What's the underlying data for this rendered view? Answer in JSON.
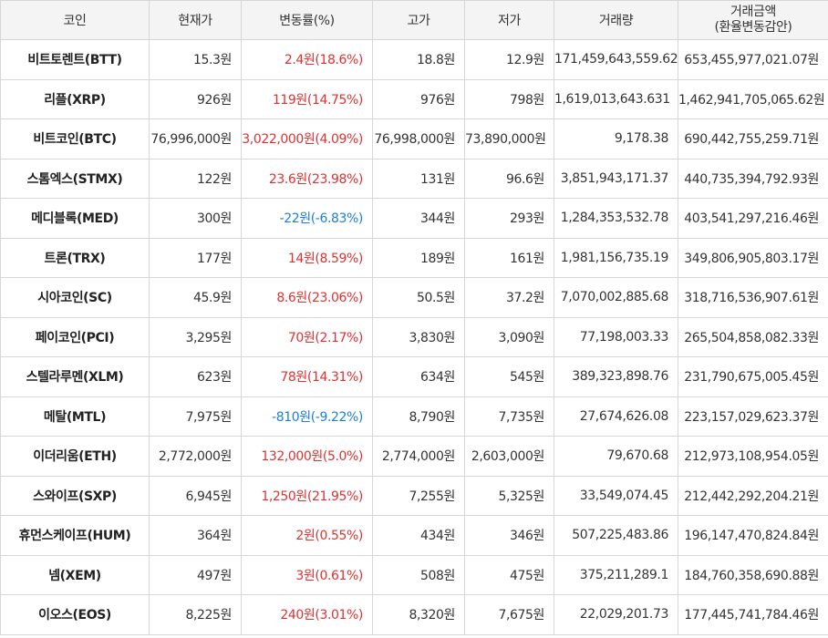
{
  "headers": {
    "coin": "코인",
    "price": "현재가",
    "change": "변동률(%)",
    "high": "고가",
    "low": "저가",
    "volume": "거래량",
    "amount_line1": "거래금액",
    "amount_line2": "(환율변동감안)"
  },
  "colors": {
    "up": "#e03131",
    "down": "#1c7ed6",
    "header_bg": "#f4f4f4",
    "border": "#d6d6d6"
  },
  "rows": [
    {
      "name": "비트토렌트(BTT)",
      "price": "15.3원",
      "change": "2.4원(18.6%)",
      "dir": "up",
      "high": "18.8원",
      "low": "12.9원",
      "volume": "171,459,643,559.62",
      "amount": "653,455,977,021.07원"
    },
    {
      "name": "리플(XRP)",
      "price": "926원",
      "change": "119원(14.75%)",
      "dir": "up",
      "high": "976원",
      "low": "798원",
      "volume": "1,619,013,643.631",
      "amount": "1,462,941,705,065.62원"
    },
    {
      "name": "비트코인(BTC)",
      "price": "76,996,000원",
      "change": "3,022,000원(4.09%)",
      "dir": "up",
      "high": "76,998,000원",
      "low": "73,890,000원",
      "volume": "9,178.38",
      "amount": "690,442,755,259.71원"
    },
    {
      "name": "스톰엑스(STMX)",
      "price": "122원",
      "change": "23.6원(23.98%)",
      "dir": "up",
      "high": "131원",
      "low": "96.6원",
      "volume": "3,851,943,171.37",
      "amount": "440,735,394,792.93원"
    },
    {
      "name": "메디블록(MED)",
      "price": "300원",
      "change": "-22원(-6.83%)",
      "dir": "down",
      "high": "344원",
      "low": "293원",
      "volume": "1,284,353,532.78",
      "amount": "403,541,297,216.46원"
    },
    {
      "name": "트론(TRX)",
      "price": "177원",
      "change": "14원(8.59%)",
      "dir": "up",
      "high": "189원",
      "low": "161원",
      "volume": "1,981,156,735.19",
      "amount": "349,806,905,803.17원"
    },
    {
      "name": "시아코인(SC)",
      "price": "45.9원",
      "change": "8.6원(23.06%)",
      "dir": "up",
      "high": "50.5원",
      "low": "37.2원",
      "volume": "7,070,002,885.68",
      "amount": "318,716,536,907.61원"
    },
    {
      "name": "페이코인(PCI)",
      "price": "3,295원",
      "change": "70원(2.17%)",
      "dir": "up",
      "high": "3,830원",
      "low": "3,090원",
      "volume": "77,198,003.33",
      "amount": "265,504,858,082.33원"
    },
    {
      "name": "스텔라루멘(XLM)",
      "price": "623원",
      "change": "78원(14.31%)",
      "dir": "up",
      "high": "634원",
      "low": "545원",
      "volume": "389,323,898.76",
      "amount": "231,790,675,005.45원"
    },
    {
      "name": "메탈(MTL)",
      "price": "7,975원",
      "change": "-810원(-9.22%)",
      "dir": "down",
      "high": "8,790원",
      "low": "7,735원",
      "volume": "27,674,626.08",
      "amount": "223,157,029,623.37원"
    },
    {
      "name": "이더리움(ETH)",
      "price": "2,772,000원",
      "change": "132,000원(5.0%)",
      "dir": "up",
      "high": "2,774,000원",
      "low": "2,603,000원",
      "volume": "79,670.68",
      "amount": "212,973,108,954.05원"
    },
    {
      "name": "스와이프(SXP)",
      "price": "6,945원",
      "change": "1,250원(21.95%)",
      "dir": "up",
      "high": "7,255원",
      "low": "5,325원",
      "volume": "33,549,074.45",
      "amount": "212,442,292,204.21원"
    },
    {
      "name": "휴먼스케이프(HUM)",
      "price": "364원",
      "change": "2원(0.55%)",
      "dir": "up",
      "high": "434원",
      "low": "346원",
      "volume": "507,225,483.86",
      "amount": "196,147,470,824.84원"
    },
    {
      "name": "넴(XEM)",
      "price": "497원",
      "change": "3원(0.61%)",
      "dir": "up",
      "high": "508원",
      "low": "475원",
      "volume": "375,211,289.1",
      "amount": "184,760,358,690.88원"
    },
    {
      "name": "이오스(EOS)",
      "price": "8,225원",
      "change": "240원(3.01%)",
      "dir": "up",
      "high": "8,320원",
      "low": "7,675원",
      "volume": "22,029,201.73",
      "amount": "177,445,741,784.46원"
    }
  ]
}
